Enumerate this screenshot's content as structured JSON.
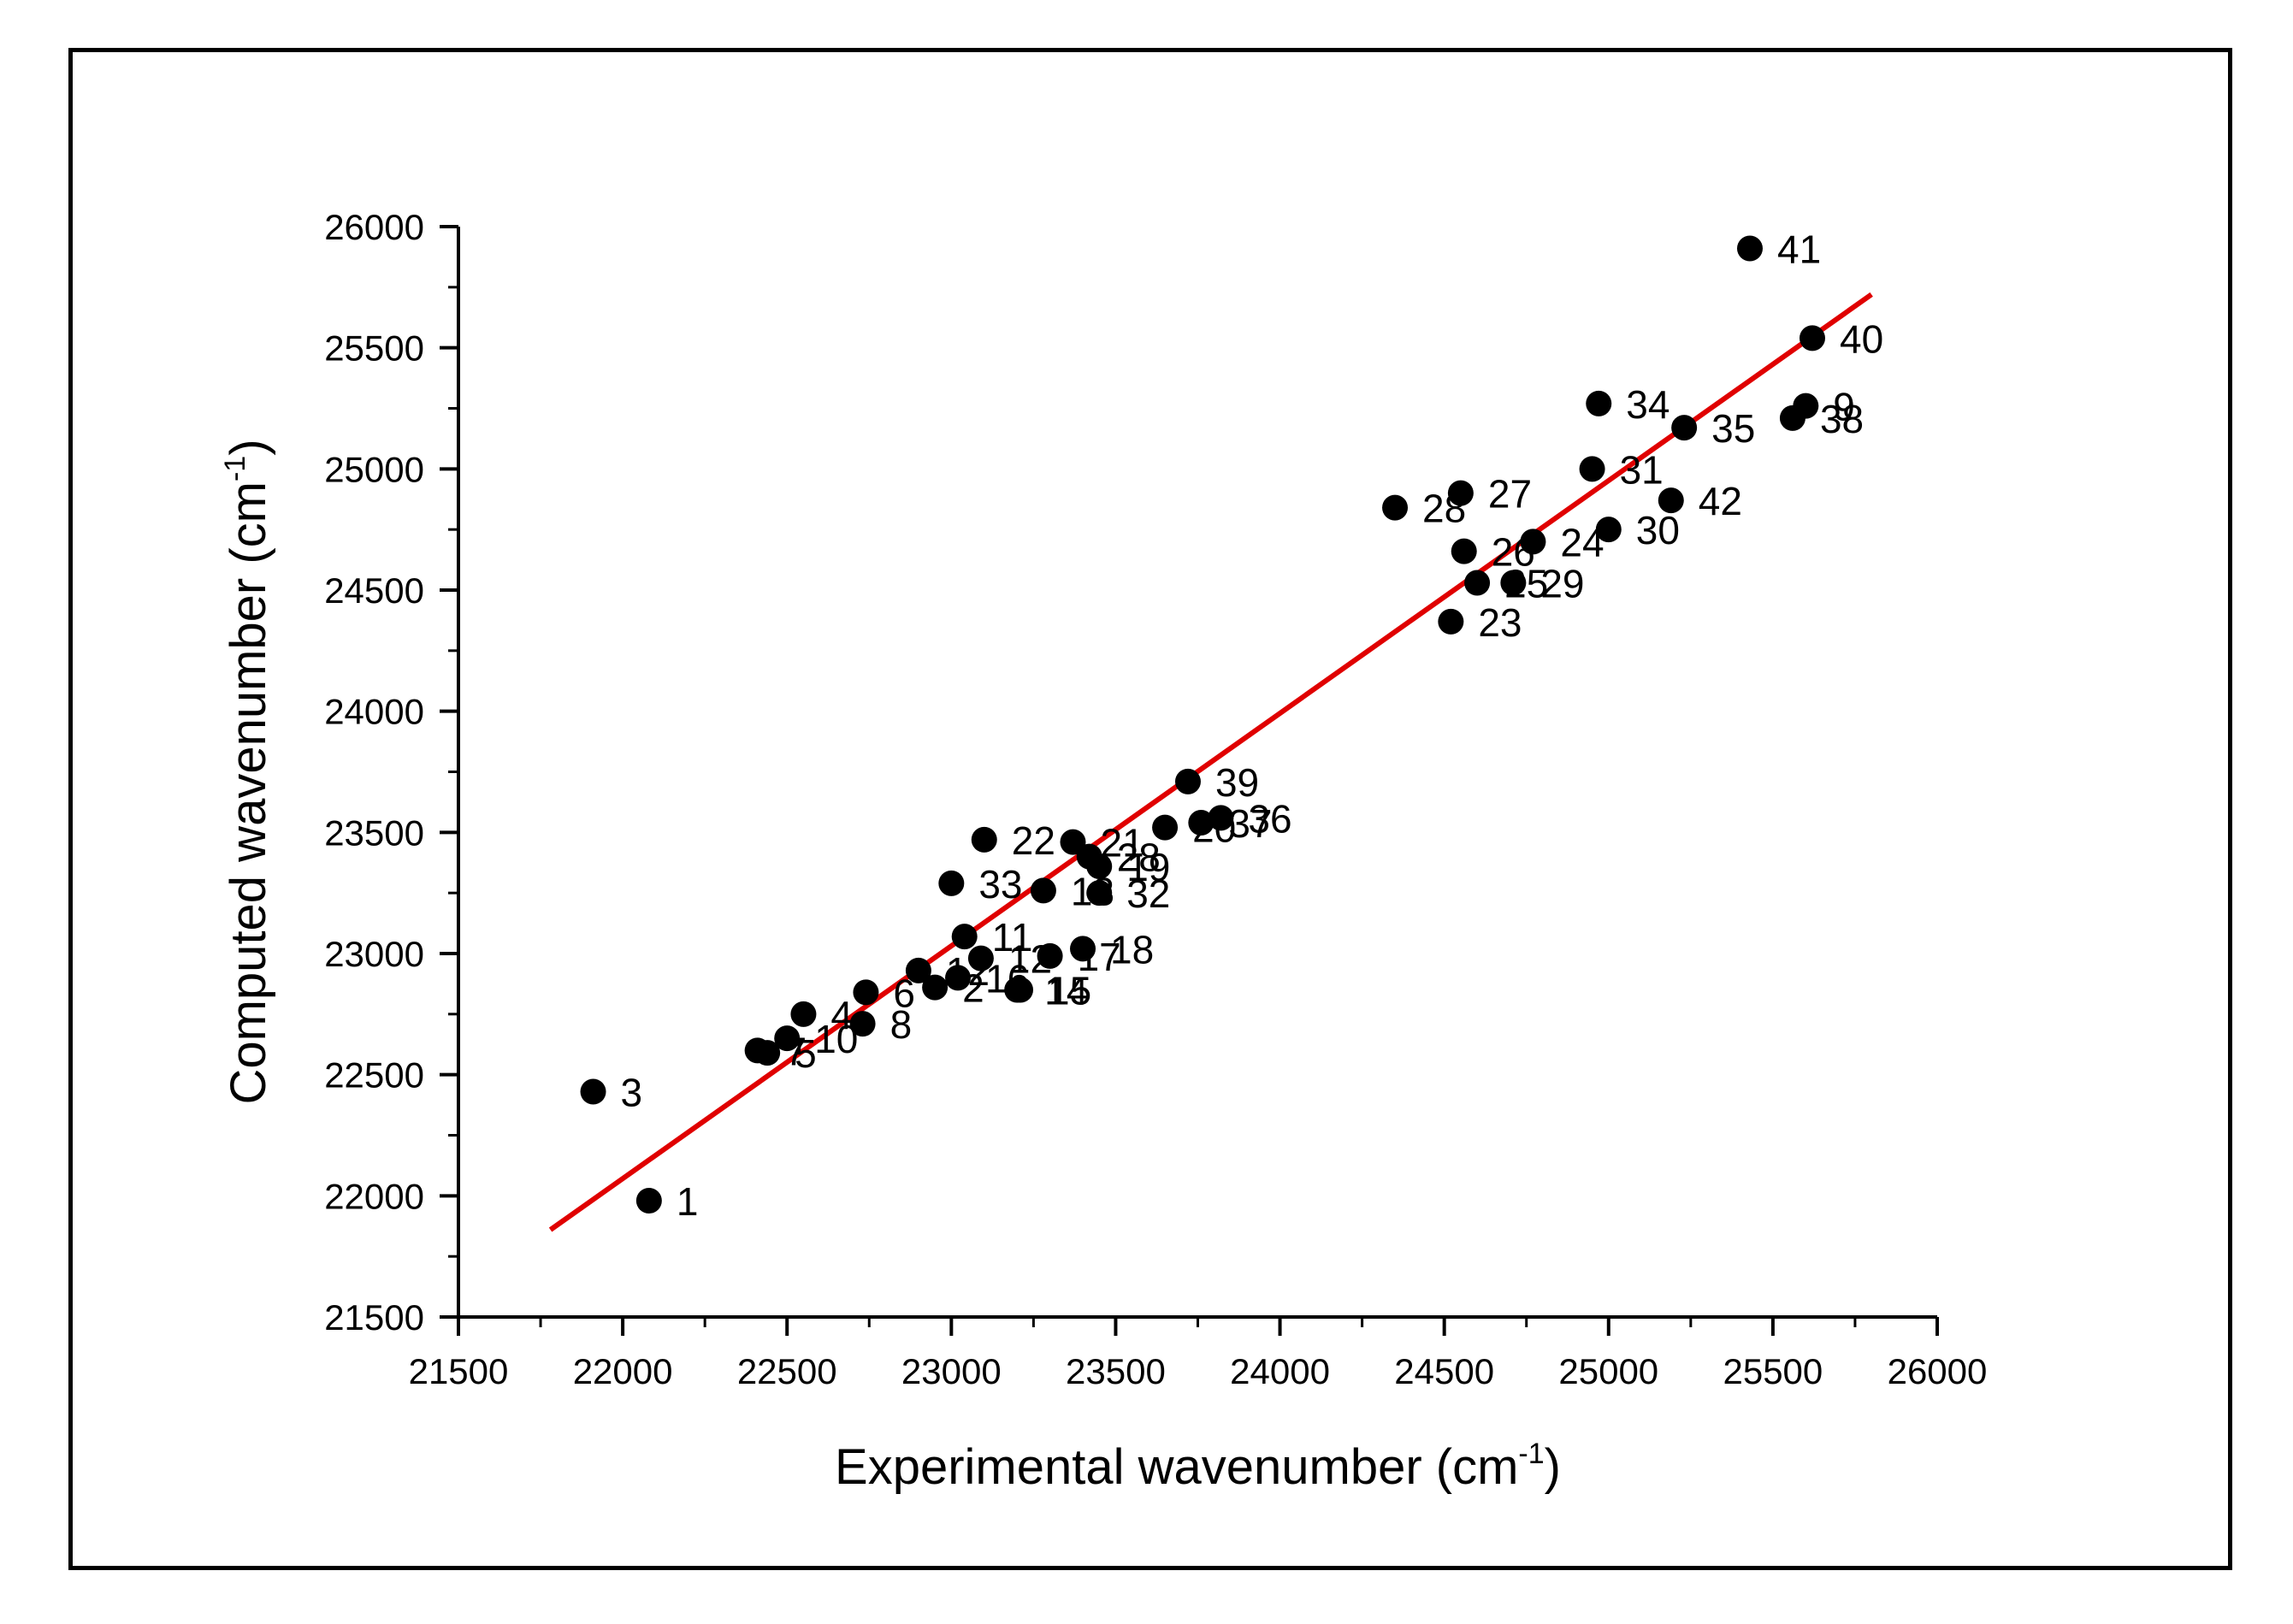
{
  "chart_data": {
    "type": "scatter",
    "title": "",
    "xlabel": {
      "prefix": "Experimental wavenumber (cm",
      "sup": "-1",
      "suffix": ")"
    },
    "ylabel": {
      "prefix": "Computed wavenumber (cm",
      "sup": "-1",
      "suffix": ")"
    },
    "xlim": [
      21500,
      26000
    ],
    "ylim": [
      21500,
      26000
    ],
    "xticks": [
      21500,
      22000,
      22500,
      23000,
      23500,
      24000,
      24500,
      25000,
      25500,
      26000
    ],
    "yticks": [
      21500,
      22000,
      22500,
      23000,
      23500,
      24000,
      24500,
      25000,
      25500,
      26000
    ],
    "grid": false,
    "legend": "none",
    "colors": {
      "points": "#000000",
      "fit_line": "#e00000",
      "frame": "#000000"
    },
    "points": [
      {
        "label": "1",
        "x": 22080,
        "y": 21980
      },
      {
        "label": "3",
        "x": 21910,
        "y": 22430
      },
      {
        "label": "4",
        "x": 22550,
        "y": 22750
      },
      {
        "label": "5",
        "x": 22440,
        "y": 22590
      },
      {
        "label": "7",
        "x": 22410,
        "y": 22600
      },
      {
        "label": "10",
        "x": 22500,
        "y": 22650
      },
      {
        "label": "8",
        "x": 22730,
        "y": 22710
      },
      {
        "label": "6",
        "x": 22740,
        "y": 22840
      },
      {
        "label": "12",
        "x": 22900,
        "y": 22930
      },
      {
        "label": "2",
        "x": 22950,
        "y": 22860
      },
      {
        "label": "16",
        "x": 23020,
        "y": 22900
      },
      {
        "label": "11",
        "x": 23040,
        "y": 23070
      },
      {
        "label": "12",
        "x": 23090,
        "y": 22980
      },
      {
        "label": "14",
        "x": 23200,
        "y": 22850
      },
      {
        "label": "15",
        "x": 23210,
        "y": 22850
      },
      {
        "label": "17",
        "x": 23300,
        "y": 22990
      },
      {
        "label": "18",
        "x": 23400,
        "y": 23020
      },
      {
        "label": "33",
        "x": 23000,
        "y": 23290
      },
      {
        "label": "22",
        "x": 23100,
        "y": 23470
      },
      {
        "label": "13",
        "x": 23280,
        "y": 23260
      },
      {
        "label": "32",
        "x": 23450,
        "y": 23250
      },
      {
        "label": "21",
        "x": 23370,
        "y": 23460
      },
      {
        "label": "28",
        "x": 23420,
        "y": 23400
      },
      {
        "label": "19",
        "x": 23450,
        "y": 23360
      },
      {
        "label": "20",
        "x": 23650,
        "y": 23520
      },
      {
        "label": "37",
        "x": 23760,
        "y": 23540
      },
      {
        "label": "36",
        "x": 23820,
        "y": 23560
      },
      {
        "label": "39",
        "x": 23720,
        "y": 23710
      },
      {
        "label": "23",
        "x": 24520,
        "y": 24370
      },
      {
        "label": "25",
        "x": 24600,
        "y": 24530
      },
      {
        "label": "29",
        "x": 24710,
        "y": 24530
      },
      {
        "label": "26",
        "x": 24560,
        "y": 24660
      },
      {
        "label": "24",
        "x": 24770,
        "y": 24700
      },
      {
        "label": "28",
        "x": 24350,
        "y": 24840
      },
      {
        "label": "27",
        "x": 24550,
        "y": 24900
      },
      {
        "label": "30",
        "x": 25000,
        "y": 24750
      },
      {
        "label": "31",
        "x": 24950,
        "y": 25000
      },
      {
        "label": "42",
        "x": 25190,
        "y": 24870
      },
      {
        "label": "34",
        "x": 24970,
        "y": 25270
      },
      {
        "label": "35",
        "x": 25230,
        "y": 25170
      },
      {
        "label": "38",
        "x": 25560,
        "y": 25210
      },
      {
        "label": "9",
        "x": 25600,
        "y": 25260
      },
      {
        "label": "40",
        "x": 25620,
        "y": 25540
      },
      {
        "label": "41",
        "x": 25430,
        "y": 25910
      }
    ],
    "fit_line": {
      "x": [
        21780,
        25800
      ],
      "y": [
        21860,
        25720
      ]
    }
  }
}
